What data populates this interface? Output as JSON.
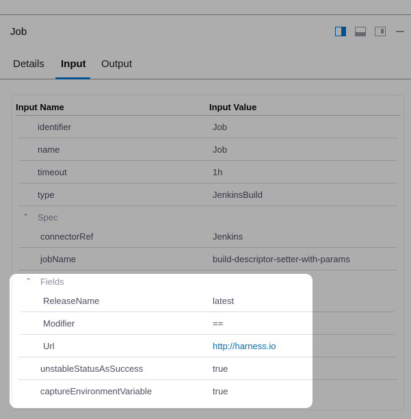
{
  "header": {
    "title": "Job"
  },
  "toolbar": {
    "icons": [
      "split-right-icon",
      "split-bottom-icon",
      "split-side-icon",
      "minimize-icon"
    ],
    "accent": "#0278d5"
  },
  "tabs": [
    {
      "label": "Details"
    },
    {
      "label": "Input",
      "active": true
    },
    {
      "label": "Output"
    }
  ],
  "table": {
    "headers": {
      "name": "Input Name",
      "value": "Input Value"
    },
    "rows": [
      {
        "name": "identifier",
        "value": "Job"
      },
      {
        "name": "name",
        "value": "Job"
      },
      {
        "name": "timeout",
        "value": "1h"
      },
      {
        "name": "type",
        "value": "JenkinsBuild"
      }
    ],
    "spec": {
      "label": "Spec",
      "rows": [
        {
          "name": "connectorRef",
          "value": "Jenkins"
        },
        {
          "name": "jobName",
          "value": "build-descriptor-setter-with-params"
        }
      ],
      "fields": {
        "label": "Fields",
        "rows": [
          {
            "name": "ReleaseName",
            "value": "latest"
          },
          {
            "name": "Modifier",
            "value": "=="
          },
          {
            "name": "Url",
            "value": "http://harness.io"
          }
        ]
      },
      "rows_after": [
        {
          "name": "unstableStatusAsSuccess",
          "value": "true"
        },
        {
          "name": "captureEnvironmentVariable",
          "value": "true"
        }
      ]
    }
  }
}
